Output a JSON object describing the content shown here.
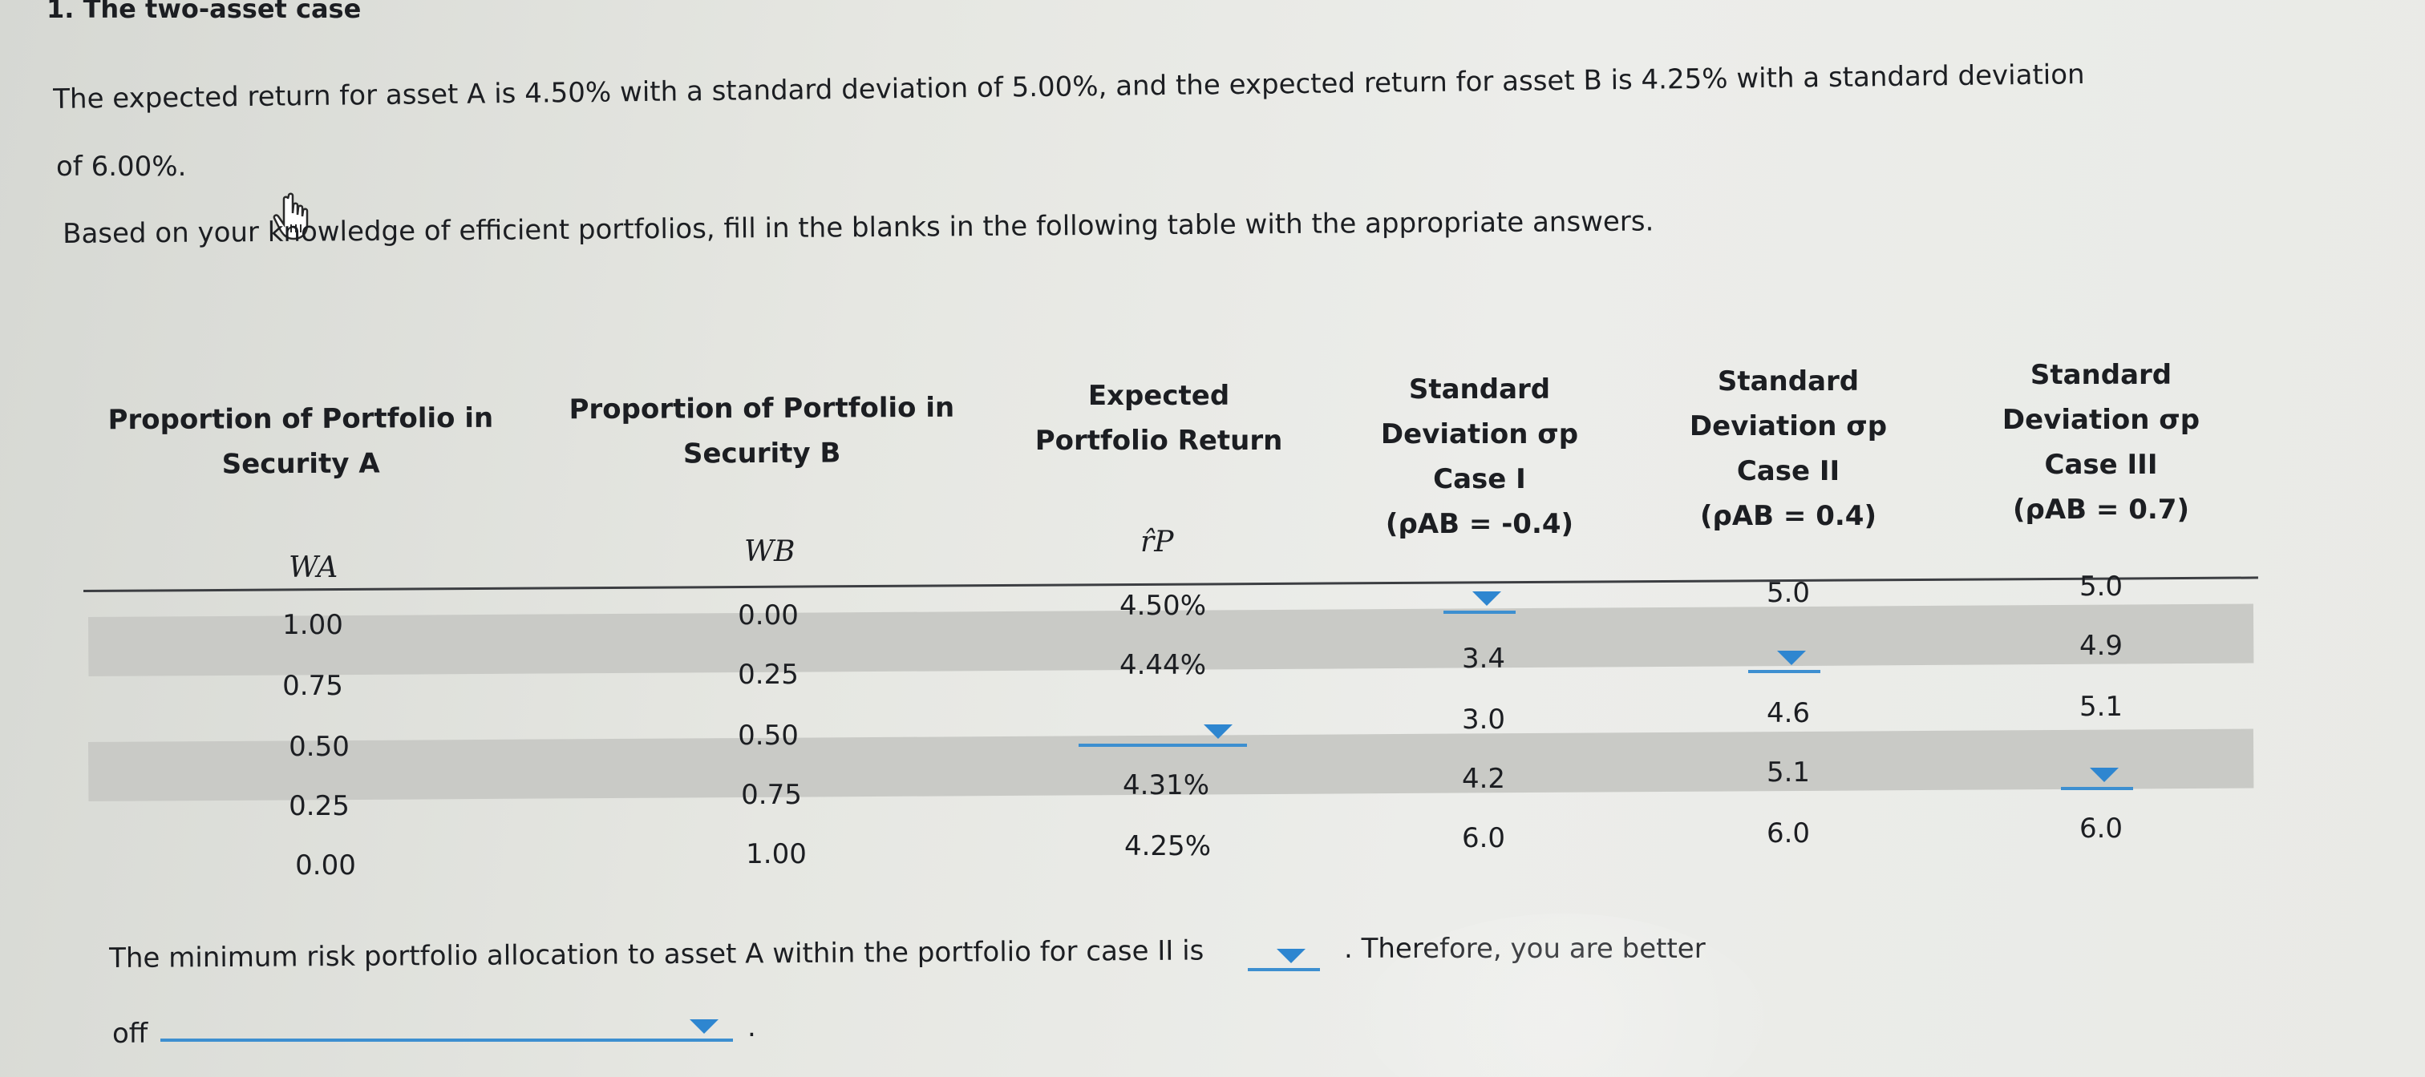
{
  "section_title": "1. The two-asset case",
  "intro_line1": "The expected return for asset A is 4.50% with a standard deviation of 5.00%, and the expected return for asset B is 4.25% with a standard deviation",
  "intro_line2": "of 6.00%.",
  "instruction": "Based on your knowledge of efficient portfolios, fill in the blanks in the following table with the appropriate answers.",
  "table": {
    "headers": {
      "col1": [
        "Proportion of Portfolio in",
        "Security A"
      ],
      "col2": [
        "Proportion of Portfolio in",
        "Security B"
      ],
      "col3": [
        "Expected",
        "Portfolio Return"
      ],
      "col4": [
        "Standard",
        "Deviation σp",
        "Case I",
        "(ρAB = -0.4)"
      ],
      "col5": [
        "Standard",
        "Deviation σp",
        "Case II",
        "(ρAB = 0.4)"
      ],
      "col6": [
        "Standard",
        "Deviation σp",
        "Case III",
        "(ρAB = 0.7)"
      ]
    },
    "symbols": {
      "wa": "WA",
      "wb": "WB",
      "rp": "r̂P"
    },
    "rows": [
      {
        "wa": "1.00",
        "wb": "0.00",
        "rp": "4.50%",
        "case1": "",
        "case2": "5.0",
        "case3": "5.0"
      },
      {
        "wa": "0.75",
        "wb": "0.25",
        "rp": "4.44%",
        "case1": "3.4",
        "case2": "",
        "case3": "4.9"
      },
      {
        "wa": "0.50",
        "wb": "0.50",
        "rp": "",
        "case1": "3.0",
        "case2": "4.6",
        "case3": "5.1"
      },
      {
        "wa": "0.25",
        "wb": "0.75",
        "rp": "4.31%",
        "case1": "4.2",
        "case2": "5.1",
        "case3": ""
      },
      {
        "wa": "0.00",
        "wb": "1.00",
        "rp": "4.25%",
        "case1": "6.0",
        "case2": "6.0",
        "case3": "6.0"
      }
    ]
  },
  "conclusion": {
    "part1": "The minimum risk portfolio allocation to asset A within the portfolio for case II is",
    "part2": ". Therefore, you are better",
    "part3": "off",
    "part4": "."
  },
  "colors": {
    "dropdown_accent": "#2e86d0",
    "row_band": "#c9cac6"
  },
  "icons": {
    "cursor": "hand-pointer-icon",
    "dropdown": "chevron-down-icon"
  }
}
